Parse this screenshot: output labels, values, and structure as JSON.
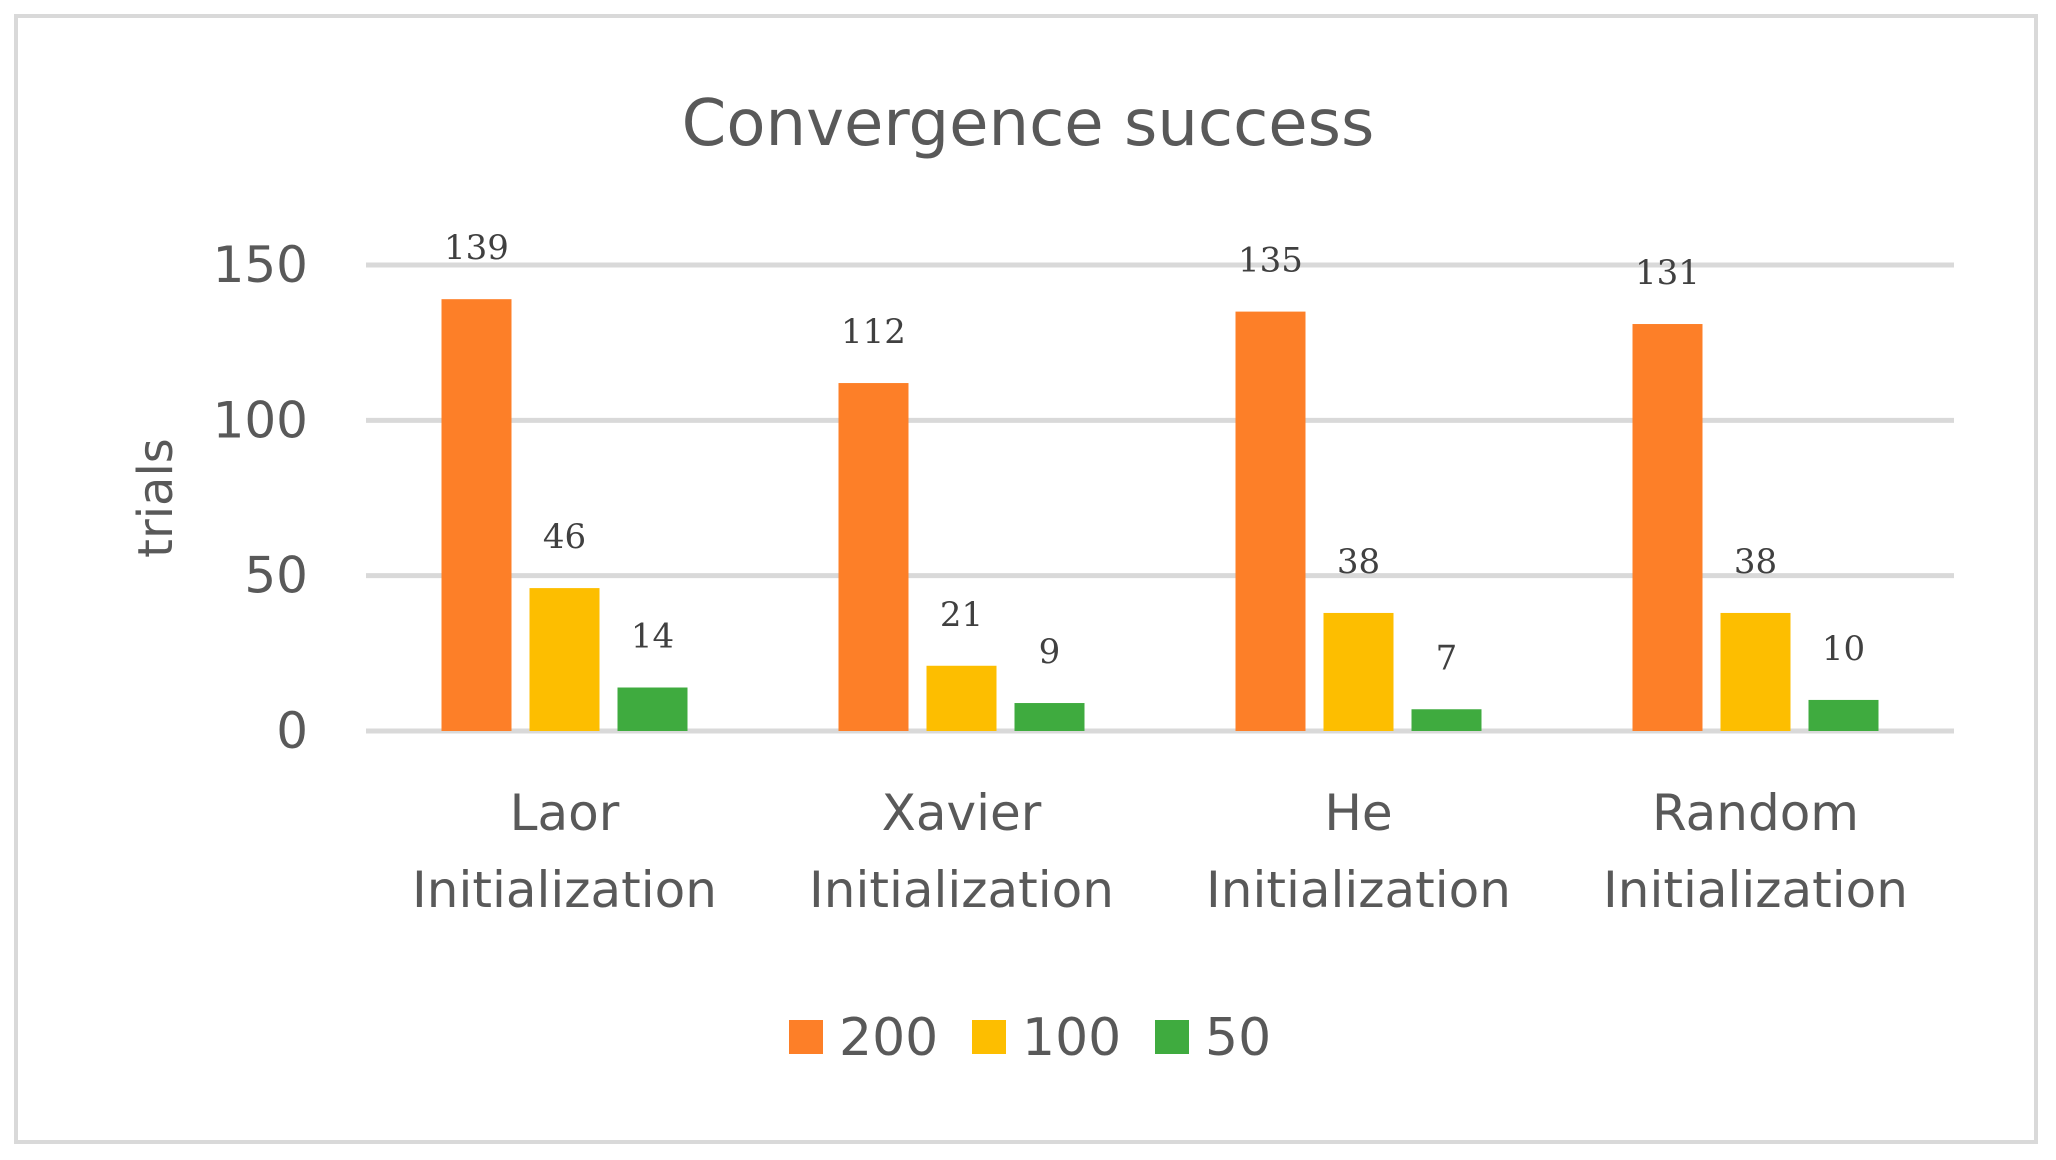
{
  "chart_data": {
    "type": "bar",
    "title": "Convergence success",
    "xlabel": "",
    "ylabel": "trials",
    "ylim": [
      0,
      150
    ],
    "yticks": [
      0,
      50,
      100,
      150
    ],
    "grid": true,
    "legend_position": "bottom",
    "categories": [
      [
        "Laor",
        "Initialization"
      ],
      [
        "Xavier",
        "Initialization"
      ],
      [
        "He",
        "Initialization"
      ],
      [
        "Random",
        "Initialization"
      ]
    ],
    "series": [
      {
        "name": "200",
        "color": "#fd7f28",
        "values": [
          139,
          112,
          135,
          131
        ]
      },
      {
        "name": "100",
        "color": "#fdbe00",
        "values": [
          46,
          21,
          38,
          38
        ]
      },
      {
        "name": "50",
        "color": "#3fab3f",
        "values": [
          14,
          9,
          7,
          10
        ]
      }
    ]
  }
}
